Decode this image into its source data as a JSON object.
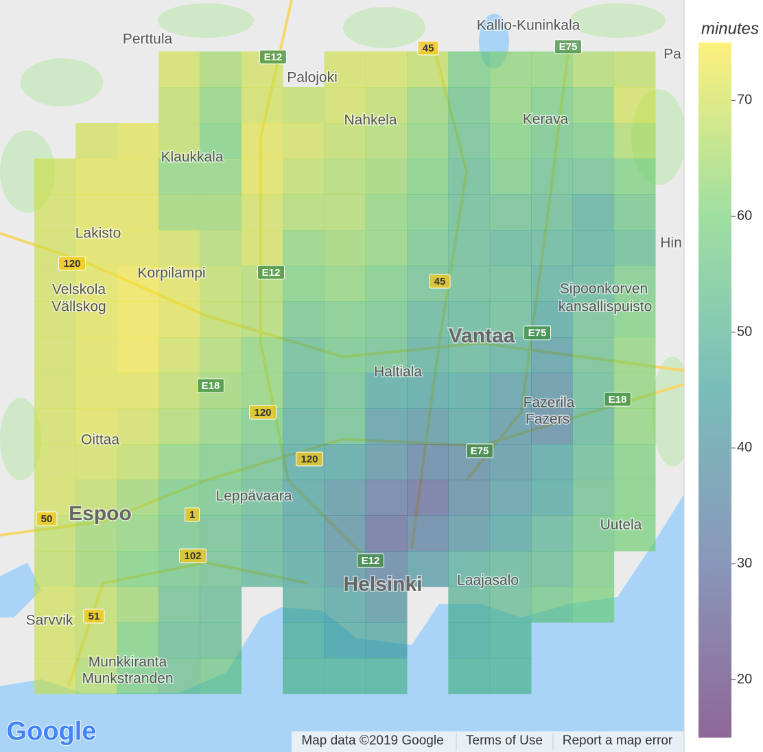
{
  "map": {
    "places": [
      "Perttula",
      "Kallio-Kuninkala",
      "Palojoki",
      "Nahkela",
      "Kerava",
      "Klaukkala",
      "Lakisto",
      "Korpilampi",
      "Velskola",
      "Vällskog",
      "Sipoonkorven",
      "kansallispuisto",
      "Vantaa",
      "Haltiala",
      "Fazerila",
      "Fazers",
      "Oittaa",
      "Leppävaara",
      "Espoo",
      "Uutela",
      "Helsinki",
      "Laajasalo",
      "Sarvvik",
      "Munkkiranta",
      "Munkstranden",
      "Hin",
      "Pa"
    ],
    "roads": [
      "E12",
      "45",
      "E75",
      "120",
      "E12",
      "45",
      "E75",
      "E18",
      "120",
      "E18",
      "E75",
      "120",
      "1",
      "50",
      "102",
      "E12",
      "51"
    ],
    "grid": {
      "values": [
        [
          null,
          null,
          null,
          70,
          65,
          70,
          null,
          70,
          70,
          68,
          58,
          62,
          62,
          66,
          68
        ],
        [
          null,
          null,
          null,
          68,
          62,
          70,
          68,
          70,
          68,
          63,
          55,
          62,
          58,
          62,
          70
        ],
        [
          null,
          70,
          72,
          68,
          60,
          72,
          70,
          68,
          66,
          62,
          54,
          60,
          56,
          58,
          66
        ],
        [
          70,
          72,
          72,
          62,
          62,
          72,
          68,
          66,
          64,
          60,
          52,
          58,
          54,
          54,
          60
        ],
        [
          70,
          72,
          72,
          64,
          64,
          70,
          66,
          66,
          62,
          58,
          52,
          54,
          52,
          48,
          56
        ],
        [
          70,
          72,
          72,
          70,
          66,
          70,
          62,
          64,
          62,
          56,
          52,
          50,
          50,
          48,
          52
        ],
        [
          70,
          72,
          74,
          72,
          68,
          66,
          60,
          62,
          58,
          54,
          52,
          52,
          48,
          50,
          58
        ],
        [
          70,
          72,
          74,
          72,
          68,
          66,
          56,
          58,
          56,
          50,
          50,
          52,
          46,
          54,
          60
        ],
        [
          70,
          72,
          74,
          70,
          66,
          62,
          52,
          56,
          54,
          48,
          50,
          48,
          42,
          54,
          62
        ],
        [
          70,
          72,
          72,
          68,
          64,
          62,
          50,
          54,
          46,
          44,
          46,
          42,
          38,
          52,
          62
        ],
        [
          70,
          72,
          70,
          66,
          62,
          58,
          48,
          54,
          42,
          40,
          44,
          40,
          36,
          50,
          62
        ],
        [
          70,
          70,
          68,
          62,
          58,
          54,
          46,
          44,
          38,
          34,
          36,
          40,
          44,
          52,
          60
        ],
        [
          70,
          68,
          64,
          58,
          56,
          52,
          44,
          40,
          32,
          28,
          36,
          42,
          46,
          54,
          60
        ],
        [
          68,
          64,
          62,
          56,
          54,
          50,
          44,
          38,
          28,
          34,
          40,
          44,
          50,
          56,
          60
        ],
        [
          68,
          64,
          60,
          56,
          54,
          50,
          46,
          40,
          34,
          42,
          48,
          50,
          52,
          58,
          null
        ],
        [
          70,
          68,
          64,
          54,
          52,
          null,
          48,
          44,
          40,
          null,
          50,
          52,
          56,
          60,
          null
        ],
        [
          70,
          68,
          60,
          52,
          52,
          null,
          50,
          46,
          44,
          null,
          50,
          52,
          null,
          null,
          null
        ],
        [
          70,
          66,
          58,
          54,
          56,
          null,
          52,
          52,
          52,
          null,
          52,
          52,
          null,
          null,
          null
        ]
      ]
    }
  },
  "colorbar": {
    "title": "minutes",
    "clim": [
      15,
      75
    ],
    "ticks": [
      20,
      30,
      40,
      50,
      60,
      70
    ],
    "colorscale": [
      "#440154",
      "#3b528b",
      "#21918c",
      "#5ec962",
      "#fde725"
    ],
    "opacity": 0.6
  },
  "footer": {
    "attribution": "Map data ©2019 Google",
    "terms": "Terms of Use",
    "report": "Report a map error"
  },
  "logo": "Google"
}
